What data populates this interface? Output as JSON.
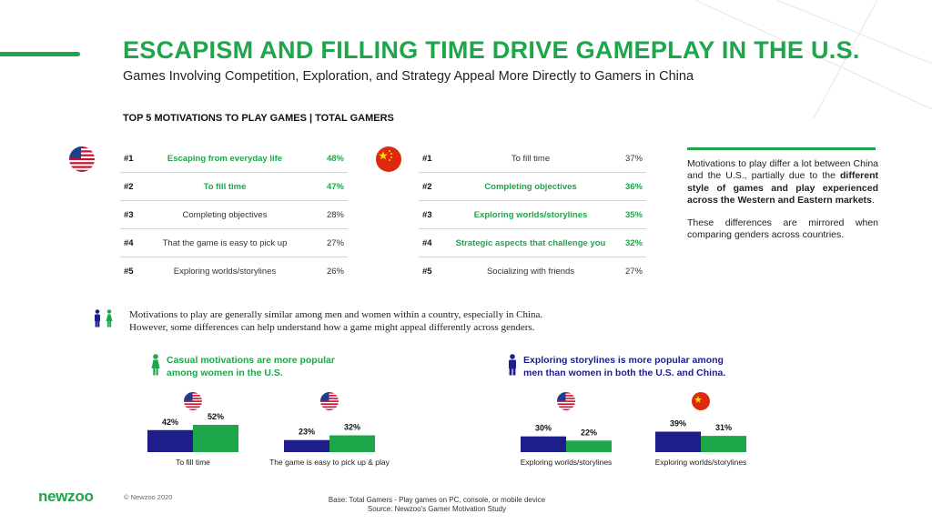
{
  "header": {
    "title": "ESCAPISM AND FILLING TIME DRIVE GAMEPLAY IN THE U.S.",
    "subtitle": "Games Involving Competition, Exploration, and Strategy Appeal More Directly to Gamers in China"
  },
  "section_title": "TOP 5 MOTIVATIONS TO PLAY GAMES | TOTAL GAMERS",
  "us_table": {
    "flag": "us-flag-icon",
    "rows": [
      {
        "rank": "#1",
        "label": "Escaping from everyday life",
        "pct": "48%",
        "highlight": true
      },
      {
        "rank": "#2",
        "label": "To fill time",
        "pct": "47%",
        "highlight": true
      },
      {
        "rank": "#3",
        "label": "Completing objectives",
        "pct": "28%",
        "highlight": false
      },
      {
        "rank": "#4",
        "label": "That the game is easy to pick up",
        "pct": "27%",
        "highlight": false
      },
      {
        "rank": "#5",
        "label": "Exploring worlds/storylines",
        "pct": "26%",
        "highlight": false
      }
    ]
  },
  "cn_table": {
    "flag": "china-flag-icon",
    "rows": [
      {
        "rank": "#1",
        "label": "To fill time",
        "pct": "37%",
        "highlight": false
      },
      {
        "rank": "#2",
        "label": "Completing objectives",
        "pct": "36%",
        "highlight": true
      },
      {
        "rank": "#3",
        "label": "Exploring worlds/storylines",
        "pct": "35%",
        "highlight": true
      },
      {
        "rank": "#4",
        "label": "Strategic aspects that challenge you",
        "pct": "32%",
        "highlight": true
      },
      {
        "rank": "#5",
        "label": "Socializing with friends",
        "pct": "27%",
        "highlight": false
      }
    ]
  },
  "sidebar": {
    "p1_pre": "Motivations to play differ a lot between China and the U.S., partially due to the ",
    "p1_bold": "different style of games and play experienced across the Western and Eastern markets",
    "p1_post": ".",
    "p2": "These differences are mirrored when comparing genders across countries."
  },
  "gender_note": {
    "line1": "Motivations to play are generally similar among men and women within a country, especially in China.",
    "line2": "However, some differences can help understand how a game might appeal differently across genders."
  },
  "callouts": {
    "women_line1": "Casual motivations are more popular",
    "women_line2": "among women in the U.S.",
    "men_line1": "Exploring storylines is more popular among",
    "men_line2": "men than women in both the U.S. and China."
  },
  "colors": {
    "green": "#1ea64a",
    "navy": "#1d1d8b"
  },
  "chart_data": [
    {
      "type": "bar",
      "country": "us",
      "category": "To fill time",
      "series": [
        {
          "name": "men",
          "value": 42
        },
        {
          "name": "women",
          "value": 52
        }
      ],
      "ylim": [
        0,
        60
      ]
    },
    {
      "type": "bar",
      "country": "us",
      "category": "The game is easy to pick up & play",
      "series": [
        {
          "name": "men",
          "value": 23
        },
        {
          "name": "women",
          "value": 32
        }
      ],
      "ylim": [
        0,
        60
      ]
    },
    {
      "type": "bar",
      "country": "us",
      "category": "Exploring worlds/storylines",
      "series": [
        {
          "name": "men",
          "value": 30
        },
        {
          "name": "women",
          "value": 22
        }
      ],
      "ylim": [
        0,
        60
      ]
    },
    {
      "type": "bar",
      "country": "china",
      "category": "Exploring worlds/storylines",
      "series": [
        {
          "name": "men",
          "value": 39
        },
        {
          "name": "women",
          "value": 31
        }
      ],
      "ylim": [
        0,
        60
      ]
    }
  ],
  "footer": {
    "logo": "newzoo",
    "copyright": "© Newzoo 2020",
    "base": "Base: Total Gamers - Play games on PC, console, or mobile device",
    "source": "Source: Newzoo's Gamer Motivation Study"
  }
}
